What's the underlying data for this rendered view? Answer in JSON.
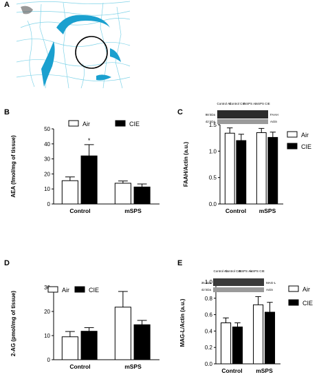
{
  "figure": {
    "panels": [
      "A",
      "B",
      "C",
      "D",
      "E"
    ]
  },
  "legend": {
    "air": "Air",
    "cie": "CIE"
  },
  "colors": {
    "air": "#ffffff",
    "cie": "#000000",
    "atlas_blue": "#1aa0cf",
    "atlas_line": "#7fd3e8"
  },
  "blot_c": {
    "lanes": [
      "Control Air",
      "Control CIE",
      "mSPS Air",
      "mSPS CIE"
    ],
    "rows": [
      {
        "kda": "98 kDa",
        "label": "FAAH"
      },
      {
        "kda": "42 kDa",
        "label": "Actin"
      }
    ]
  },
  "blot_e": {
    "lanes": [
      "Control Air",
      "Control CIE",
      "mSPS Air",
      "mSPS CIE"
    ],
    "rows": [
      {
        "kda": "35 kDa",
        "label": "MAG-L"
      },
      {
        "kda": "42 kDa",
        "label": "Actin"
      }
    ]
  },
  "chart_data": [
    {
      "panel": "B",
      "type": "bar",
      "categories": [
        "Control",
        "mSPS"
      ],
      "series": [
        {
          "name": "Air",
          "values": [
            15.5,
            13.8
          ],
          "errors": [
            2.5,
            1.5
          ]
        },
        {
          "name": "CIE",
          "values": [
            32.0,
            11.3
          ],
          "errors": [
            7.5,
            2.0
          ]
        }
      ],
      "ylabel": "AEA (fmol/mg of tissue)",
      "ylim": [
        0,
        50
      ],
      "yticks": [
        0,
        10,
        20,
        30,
        40,
        50
      ],
      "annotations": [
        {
          "text": "*",
          "category": "Control",
          "series": "CIE"
        }
      ],
      "legend": "top"
    },
    {
      "panel": "C",
      "type": "bar",
      "categories": [
        "Control",
        "mSPS"
      ],
      "series": [
        {
          "name": "Air",
          "values": [
            1.34,
            1.35
          ],
          "errors": [
            0.1,
            0.08
          ]
        },
        {
          "name": "CIE",
          "values": [
            1.2,
            1.26
          ],
          "errors": [
            0.12,
            0.1
          ]
        }
      ],
      "ylabel": "FAAH/Actin (a.u.)",
      "ylim": [
        0,
        1.5
      ],
      "yticks": [
        0.0,
        0.5,
        1.0,
        1.5
      ],
      "legend": "right"
    },
    {
      "panel": "D",
      "type": "bar",
      "categories": [
        "Control",
        "mSPS"
      ],
      "series": [
        {
          "name": "Air",
          "values": [
            9.5,
            21.8
          ],
          "errors": [
            2.2,
            6.5
          ]
        },
        {
          "name": "CIE",
          "values": [
            11.8,
            14.5
          ],
          "errors": [
            1.5,
            1.8
          ]
        }
      ],
      "ylabel": "2-AG (pmol/mg of tissue)",
      "ylim": [
        0,
        30
      ],
      "yticks": [
        0,
        10,
        20,
        30
      ],
      "legend": "top"
    },
    {
      "panel": "E",
      "type": "bar",
      "categories": [
        "Control",
        "mSPS"
      ],
      "series": [
        {
          "name": "Air",
          "values": [
            0.5,
            0.72
          ],
          "errors": [
            0.06,
            0.1
          ]
        },
        {
          "name": "CIE",
          "values": [
            0.45,
            0.63
          ],
          "errors": [
            0.05,
            0.12
          ]
        }
      ],
      "ylabel": "MAG-L/Actin (a.u.)",
      "ylim": [
        0,
        1.0
      ],
      "yticks": [
        0.0,
        0.2,
        0.4,
        0.6,
        0.8,
        1.0
      ],
      "legend": "right"
    }
  ]
}
